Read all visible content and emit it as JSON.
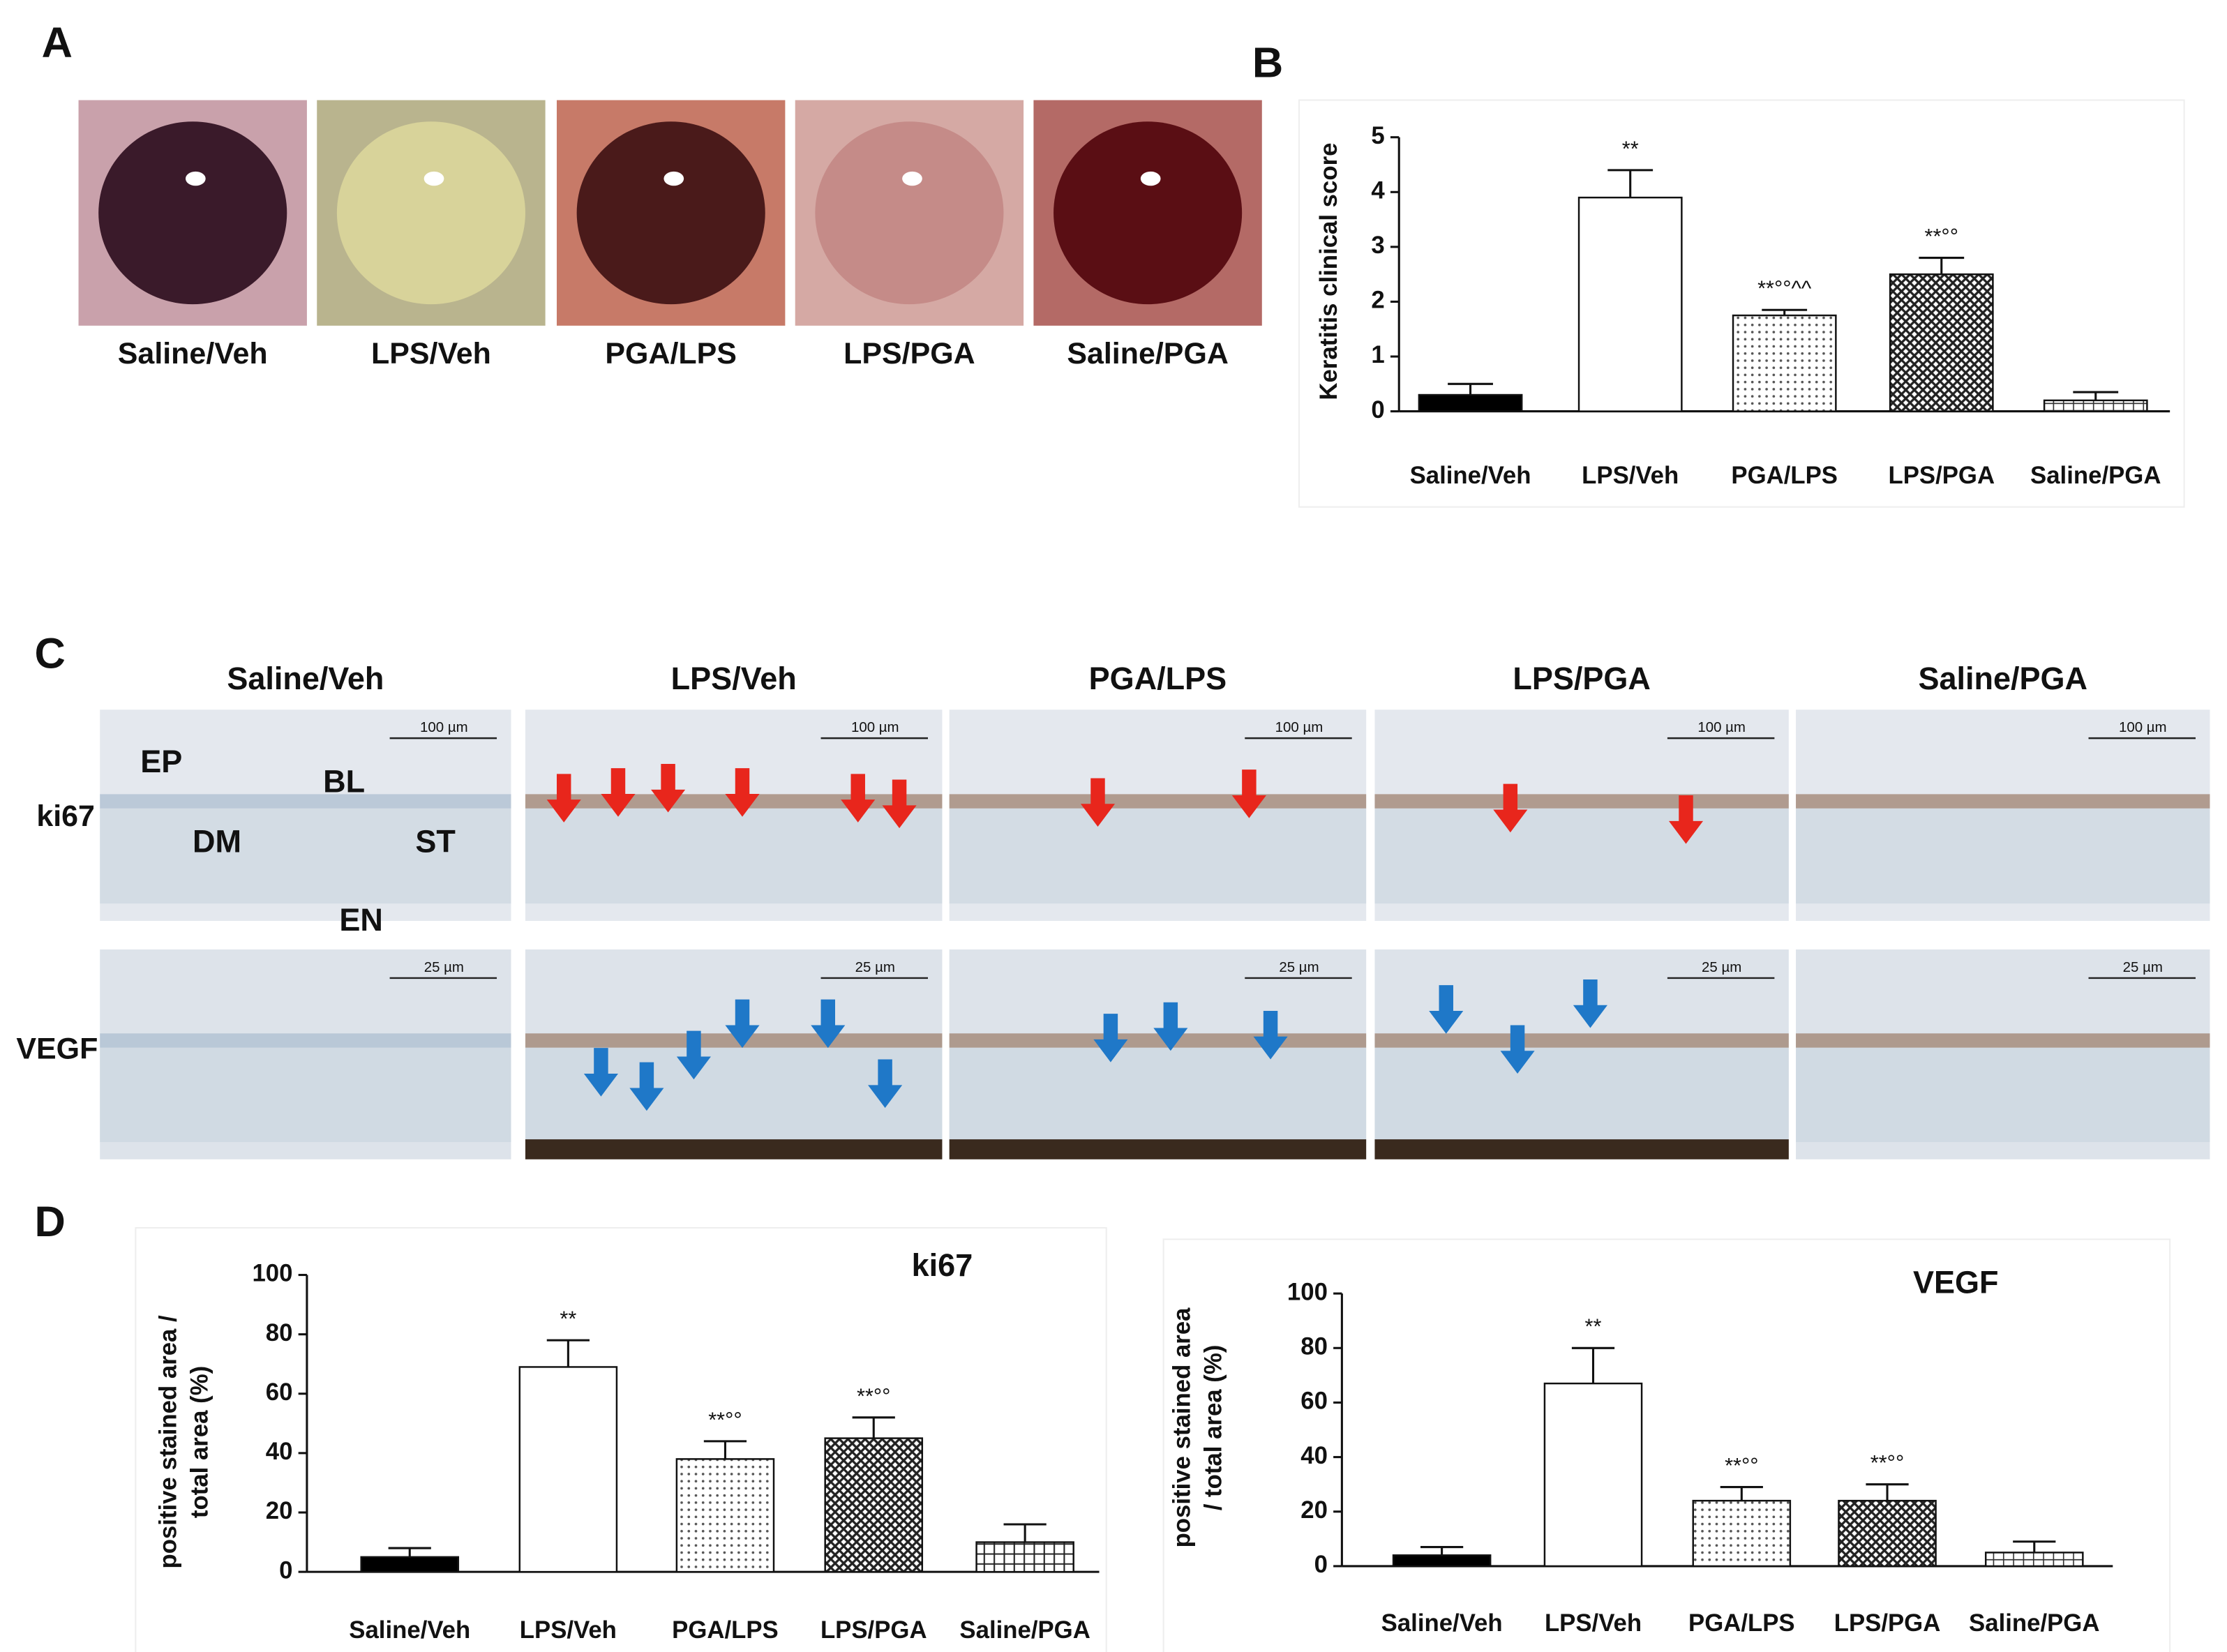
{
  "panel_labels": [
    "A",
    "B",
    "C",
    "D"
  ],
  "photos": {
    "captions": [
      "Saline/Veh",
      "LPS/Veh",
      "PGA/LPS",
      "LPS/PGA",
      "Saline/PGA"
    ]
  },
  "histology": {
    "columns": [
      "Saline/Veh",
      "LPS/Veh",
      "PGA/LPS",
      "LPS/PGA",
      "Saline/PGA"
    ],
    "rows": [
      "ki67",
      "VEGF"
    ],
    "scale_bars": [
      "100 µm",
      "25 µm"
    ],
    "layers": [
      "EP",
      "BL",
      "DM",
      "ST",
      "EN"
    ]
  },
  "chart_data": [
    {
      "type": "bar",
      "ylabel": [
        "Keratitis clinical score"
      ],
      "categories": [
        "Saline/Veh",
        "LPS/Veh",
        "PGA/LPS",
        "LPS/PGA",
        "Saline/PGA"
      ],
      "values": [
        0.3,
        3.9,
        1.75,
        2.5,
        0.2
      ],
      "errors": [
        0.2,
        0.5,
        0.1,
        0.3,
        0.15
      ],
      "annotations": [
        null,
        "**",
        "**°°^^",
        "**°°",
        null
      ],
      "fills": [
        "black",
        "white",
        "dots",
        "crosshatch",
        "hlines"
      ],
      "ylim": [
        0,
        5
      ],
      "yticks": [
        0,
        1,
        2,
        3,
        4,
        5
      ]
    },
    {
      "type": "bar",
      "title": "ki67",
      "ylabel": [
        "positive stained area /",
        "total area (%)"
      ],
      "categories": [
        "Saline/Veh",
        "LPS/Veh",
        "PGA/LPS",
        "LPS/PGA",
        "Saline/PGA"
      ],
      "values": [
        5,
        69,
        38,
        45,
        10
      ],
      "errors": [
        3,
        9,
        6,
        7,
        6
      ],
      "annotations": [
        null,
        "**",
        "**°°",
        "**°°",
        null
      ],
      "fills": [
        "black",
        "white",
        "dots",
        "crosshatch",
        "grid"
      ],
      "ylim": [
        0,
        100
      ],
      "yticks": [
        0,
        20,
        40,
        60,
        80,
        100
      ]
    },
    {
      "type": "bar",
      "title": "VEGF",
      "ylabel": [
        "positive stained area",
        "/ total area (%)"
      ],
      "categories": [
        "Saline/Veh",
        "LPS/Veh",
        "PGA/LPS",
        "LPS/PGA",
        "Saline/PGA"
      ],
      "values": [
        4,
        67,
        24,
        24,
        5
      ],
      "errors": [
        3,
        13,
        5,
        6,
        4
      ],
      "annotations": [
        null,
        "**",
        "**°°",
        "**°°",
        null
      ],
      "fills": [
        "black",
        "white",
        "dots",
        "crosshatch",
        "hlines"
      ],
      "ylim": [
        0,
        100
      ],
      "yticks": [
        0,
        20,
        40,
        60,
        80,
        100
      ]
    }
  ]
}
